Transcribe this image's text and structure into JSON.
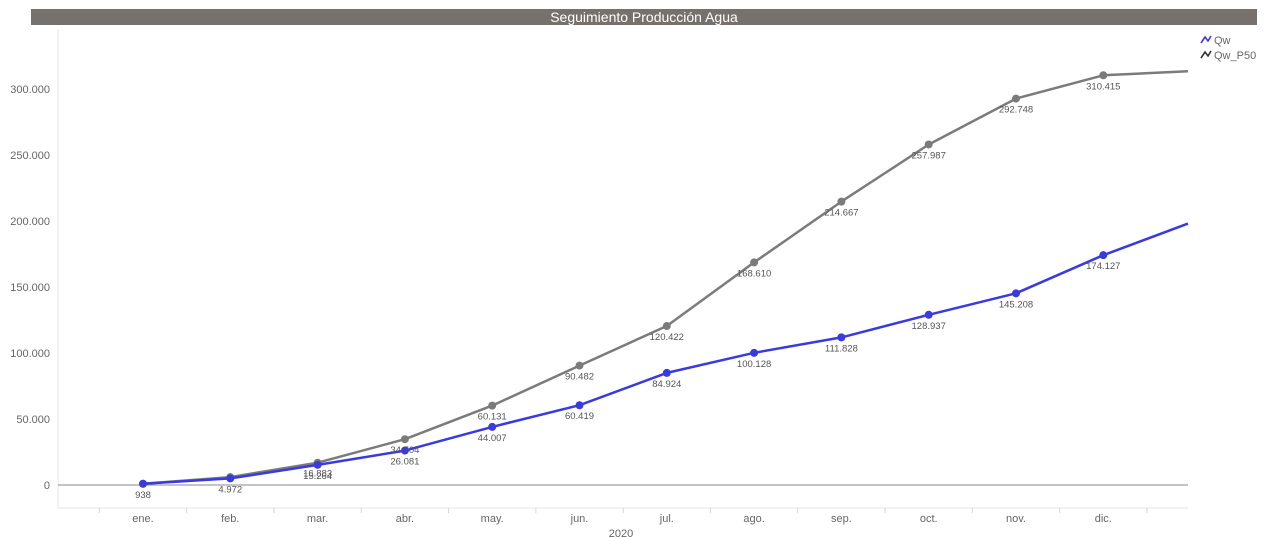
{
  "chart_data": {
    "type": "line",
    "title": "Seguimiento Producción Agua",
    "xlabel": "2020",
    "ylabel": "",
    "categories": [
      "ene.",
      "feb.",
      "mar.",
      "abr.",
      "may.",
      "jun.",
      "jul.",
      "ago.",
      "sep.",
      "oct.",
      "nov.",
      "dic."
    ],
    "ylim": [
      0,
      300000
    ],
    "yticks": [
      {
        "value": 0,
        "label": "0"
      },
      {
        "value": 50000,
        "label": "50.000"
      },
      {
        "value": 100000,
        "label": "100.000"
      },
      {
        "value": 150000,
        "label": "150.000"
      },
      {
        "value": 200000,
        "label": "200.000"
      },
      {
        "value": 250000,
        "label": "250.000"
      },
      {
        "value": 300000,
        "label": "300.000"
      }
    ],
    "grid": false,
    "legend": "top-right",
    "series": [
      {
        "name": "Qw",
        "color": "#3a3adf",
        "values": [
          938,
          4972,
          15264,
          26081,
          44007,
          60419,
          84924,
          100128,
          111828,
          128937,
          145208,
          174127
        ],
        "labels": [
          "938",
          "4.972",
          "15.264",
          "26.081",
          "44.007",
          "60.419",
          "84.924",
          "100.128",
          "111.828",
          "128.937",
          "145.208",
          "174.127"
        ],
        "trailing_value": 198000
      },
      {
        "name": "Qw_P50",
        "color": "#7b7b7b",
        "values": [
          938,
          6000,
          16883,
          34704,
          60131,
          90482,
          120422,
          168610,
          214667,
          257987,
          292748,
          310415
        ],
        "labels": [
          "",
          "",
          "16.883",
          "34.704",
          "60.131",
          "90.482",
          "120.422",
          "168.610",
          "214.667",
          "257.987",
          "292.748",
          "310.415"
        ],
        "trailing_value": 313500
      }
    ]
  }
}
